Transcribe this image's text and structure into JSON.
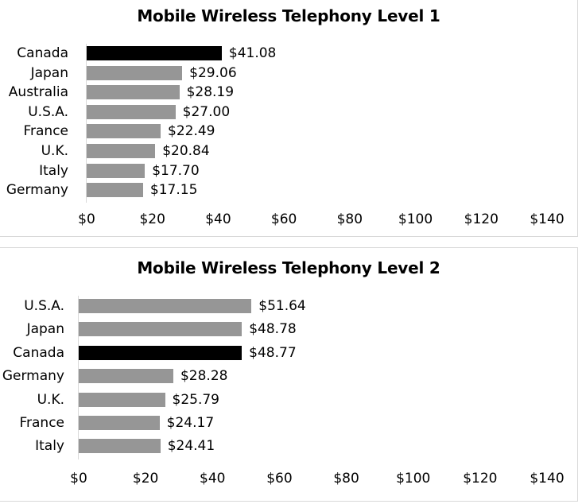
{
  "chart_data": [
    {
      "type": "bar",
      "orientation": "horizontal",
      "title": "Mobile Wireless Telephony Level 1",
      "xlabel": "",
      "ylabel": "",
      "xlim": [
        0,
        140
      ],
      "x_ticks": [
        "$0",
        "$20",
        "$40",
        "$60",
        "$80",
        "$100",
        "$120",
        "$140"
      ],
      "grid": false,
      "legend": null,
      "categories": [
        "Canada",
        "Japan",
        "Australia",
        "U.S.A.",
        "France",
        "U.K.",
        "Italy",
        "Germany"
      ],
      "values": [
        41.08,
        29.06,
        28.19,
        27.0,
        22.49,
        20.84,
        17.7,
        17.15
      ],
      "labels": [
        "$41.08",
        "$29.06",
        "$28.19",
        "$27.00",
        "$22.49",
        "$20.84",
        "$17.70",
        "$17.15"
      ],
      "highlight": "Canada",
      "colors": {
        "default": "#969696",
        "highlight": "#000000"
      }
    },
    {
      "type": "bar",
      "orientation": "horizontal",
      "title": "Mobile Wireless Telephony Level 2",
      "xlabel": "",
      "ylabel": "",
      "xlim": [
        0,
        140
      ],
      "x_ticks": [
        "$0",
        "$20",
        "$40",
        "$60",
        "$80",
        "$100",
        "$120",
        "$140"
      ],
      "grid": false,
      "legend": null,
      "categories": [
        "U.S.A.",
        "Japan",
        "Canada",
        "Germany",
        "U.K.",
        "France",
        "Italy"
      ],
      "values": [
        51.64,
        48.78,
        48.77,
        28.28,
        25.79,
        24.17,
        24.41
      ],
      "labels": [
        "$51.64",
        "$48.78",
        "$48.77",
        "$28.28",
        "$25.79",
        "$24.17",
        "$24.41"
      ],
      "highlight": "Canada",
      "colors": {
        "default": "#969696",
        "highlight": "#000000"
      }
    }
  ]
}
